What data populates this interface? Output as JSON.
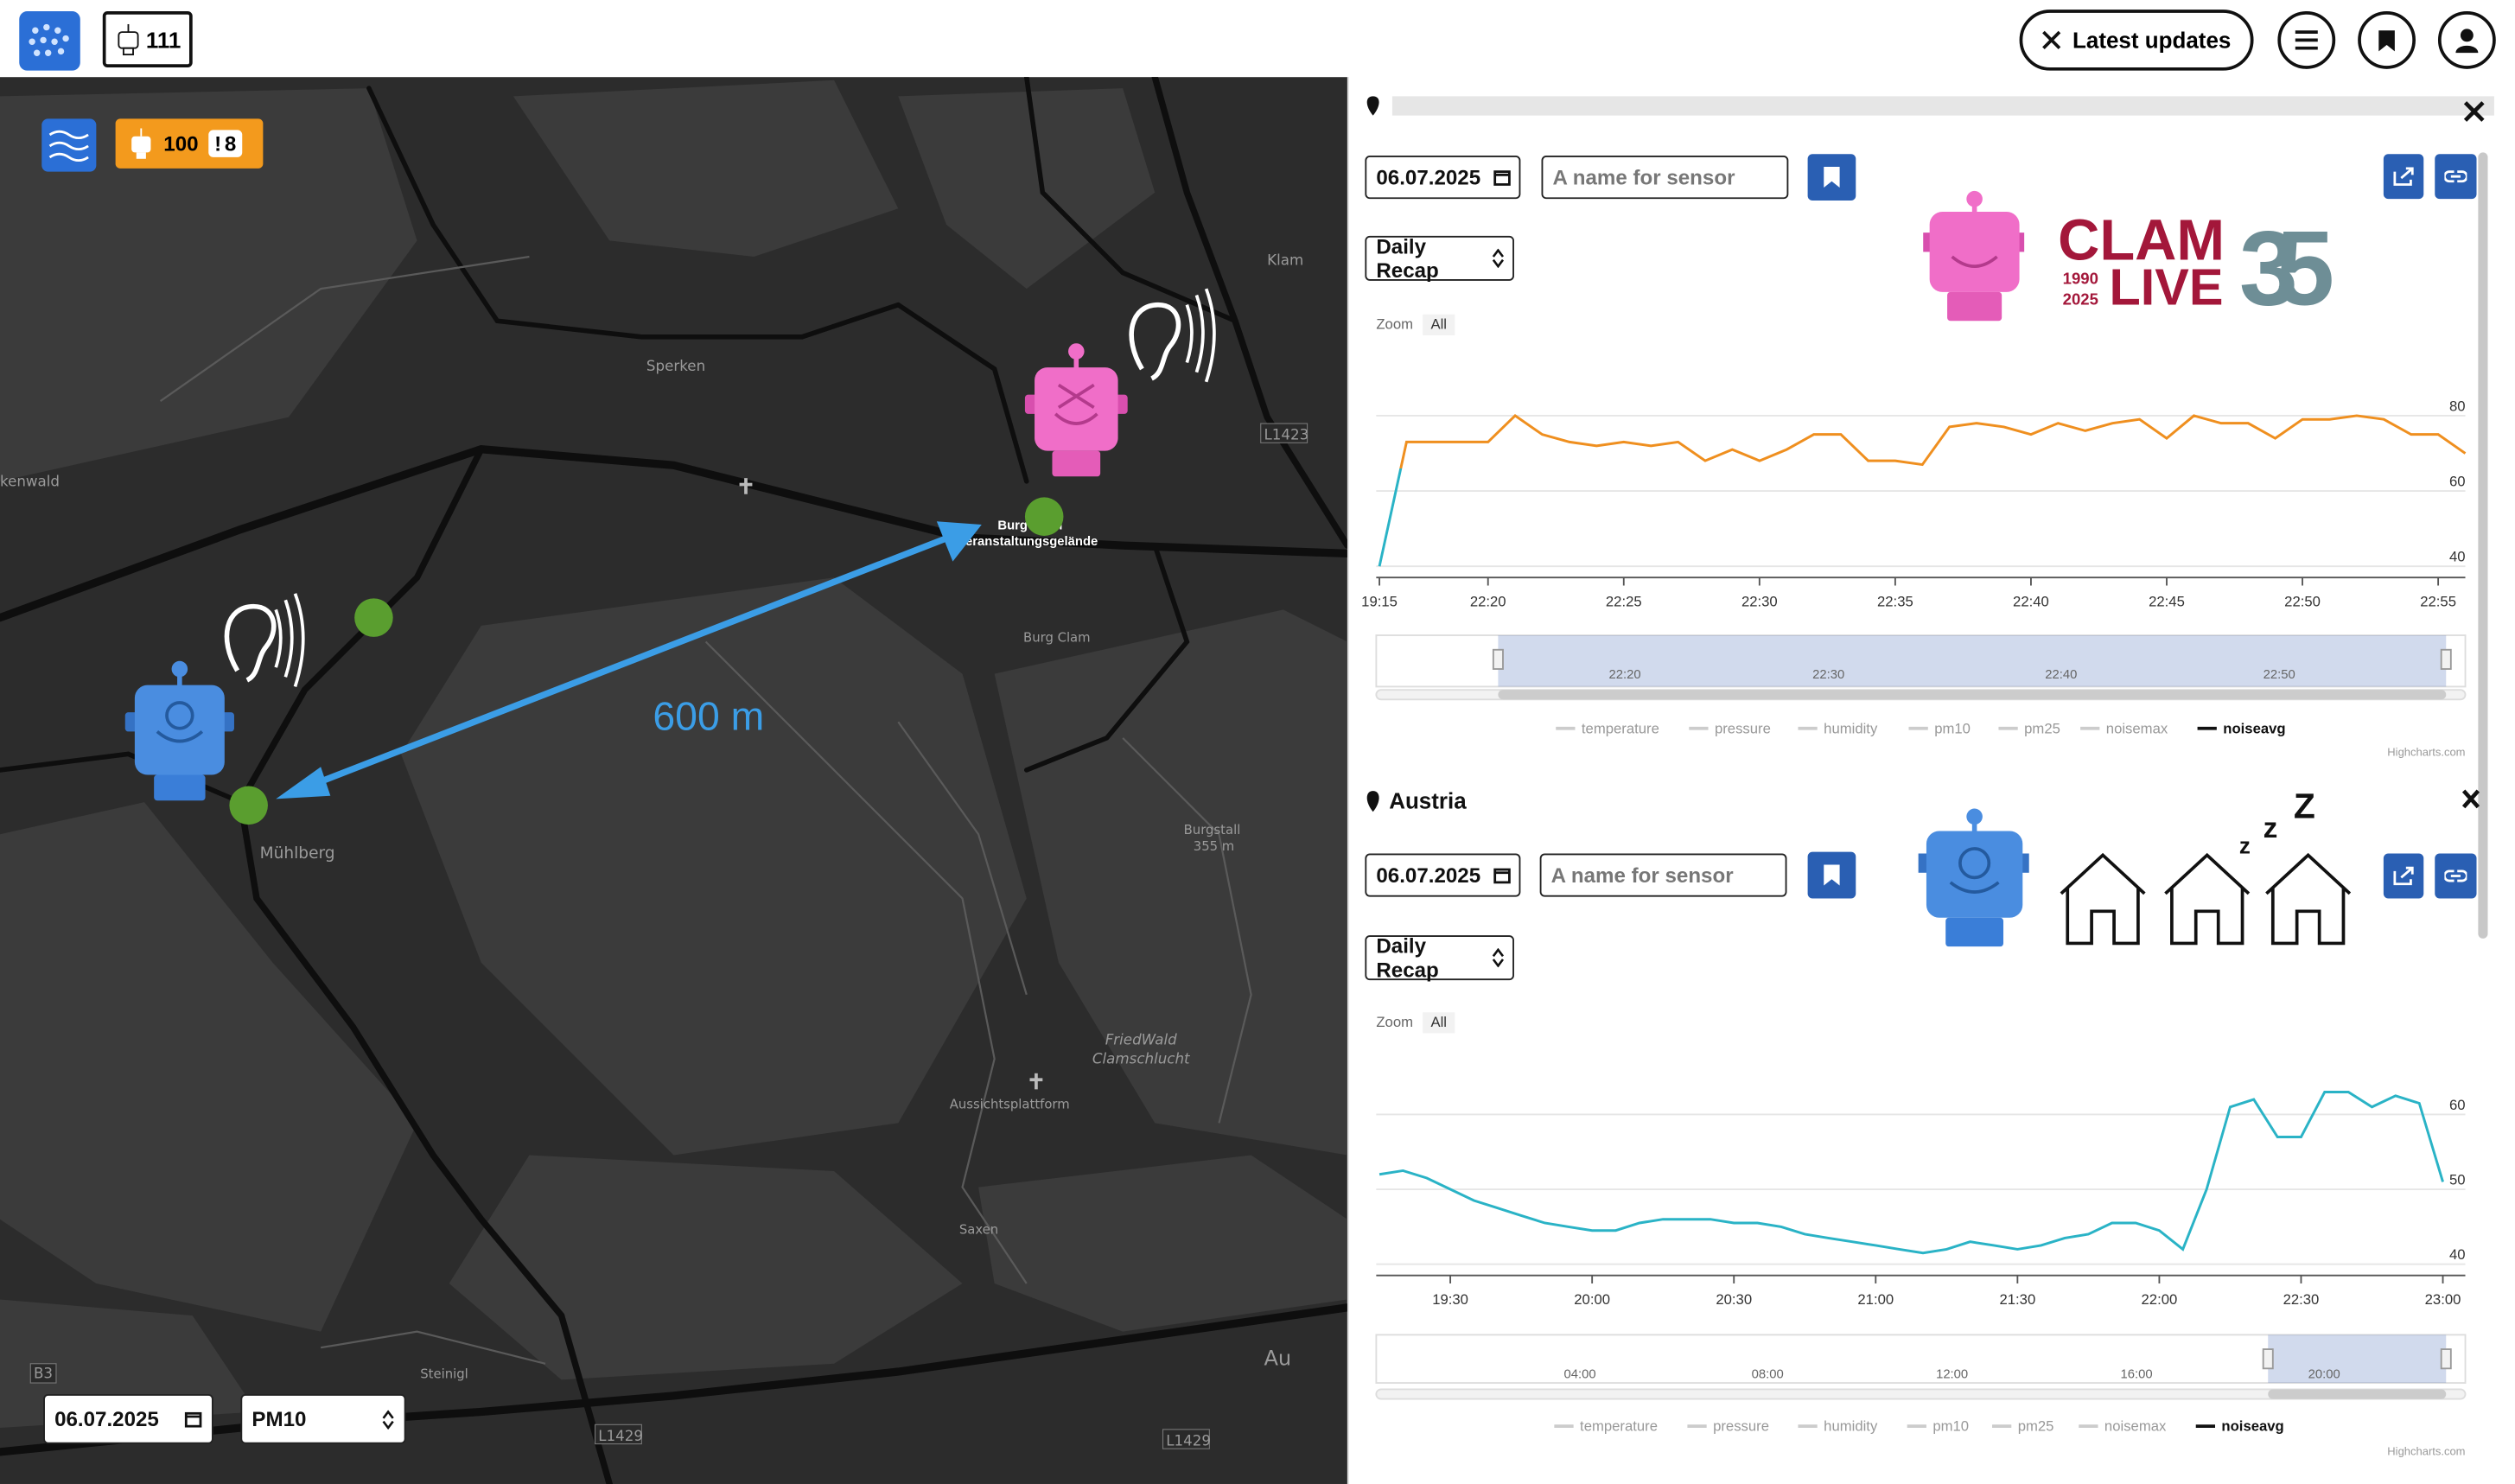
{
  "header": {
    "sensor_count": "111",
    "latest_updates": "Latest updates"
  },
  "map": {
    "badge_count": "100",
    "badge_alert_icon": "!",
    "badge_alert": "8",
    "distance": "600 m",
    "places": [
      "Klam",
      "Sperken",
      "L1423",
      "kenwald",
      "Burg Clam",
      "Veranstaltungsgelände",
      "Burg Clam",
      "Mühlberg",
      "Burgstall",
      "355 m",
      "FriedWald",
      "Clamschlucht",
      "Aussichtsplattform",
      "Saxen",
      "B3",
      "Steinigl",
      "L1429",
      "L1429",
      "Au"
    ],
    "date": "06.07.2025",
    "metric": "PM10"
  },
  "panels": [
    {
      "date": "06.07.2025",
      "name_placeholder": "A name for sensor",
      "mode": "Daily Recap",
      "logo": {
        "line1": "CLAM",
        "line2": "LIVE",
        "year_start": "1990",
        "year_end": "2025",
        "anniversary": "35"
      }
    },
    {
      "location": "Austria",
      "date": "06.07.2025",
      "name_placeholder": "A name for sensor",
      "mode": "Daily Recap",
      "sleep": [
        "z",
        "z",
        "Z"
      ]
    }
  ],
  "chart_data": [
    {
      "type": "line",
      "zoom_label": "Zoom",
      "zoom_button": "All",
      "categories": [
        "19:15",
        null,
        null,
        null,
        "22:20",
        null,
        null,
        null,
        null,
        "22:25",
        null,
        null,
        null,
        null,
        "22:30",
        null,
        null,
        null,
        null,
        "22:35",
        null,
        null,
        null,
        null,
        "22:40",
        null,
        null,
        null,
        null,
        "22:45",
        null,
        null,
        null,
        null,
        "22:50",
        null,
        null,
        null,
        null,
        "22:55",
        null
      ],
      "series": [
        {
          "name": "noiseavg",
          "color": "#ef8f1f",
          "values": [
            40,
            73,
            73,
            73,
            73,
            80,
            75,
            73,
            72,
            73,
            72,
            73,
            68,
            71,
            68,
            71,
            75,
            75,
            68,
            68,
            67,
            77,
            78,
            77,
            75,
            78,
            76,
            78,
            79,
            74,
            80,
            78,
            78,
            74,
            79,
            79,
            80,
            79,
            75,
            75,
            70
          ]
        }
      ],
      "zones": [
        {
          "value": 66,
          "color": "#2ab3c6"
        },
        {
          "color": "#ef8f1f"
        }
      ],
      "ylim": [
        37,
        86
      ],
      "yticks": [
        40,
        60,
        80
      ],
      "grid": true,
      "legend_hidden": [
        "temperature",
        "pressure",
        "humidity",
        "pm10",
        "pm25",
        "noisemax"
      ],
      "navigator_labels": [
        "22:20",
        "22:30",
        "22:40",
        "22:50"
      ],
      "credits": "Highcharts.com"
    },
    {
      "type": "line",
      "zoom_label": "Zoom",
      "zoom_button": "All",
      "categories": [
        null,
        null,
        null,
        "19:30",
        null,
        null,
        null,
        null,
        null,
        "20:00",
        null,
        null,
        null,
        null,
        null,
        "20:30",
        null,
        null,
        null,
        null,
        null,
        "21:00",
        null,
        null,
        null,
        null,
        null,
        "21:30",
        null,
        null,
        null,
        null,
        null,
        "22:00",
        null,
        null,
        null,
        null,
        null,
        "22:30",
        null,
        null,
        null,
        null,
        null,
        "23:00"
      ],
      "series": [
        {
          "name": "noiseavg",
          "color": "#2ab3c6",
          "values": [
            52,
            52.5,
            51.5,
            50,
            48.5,
            47.5,
            46.5,
            45.5,
            45,
            44.5,
            44.5,
            45.5,
            46,
            46,
            46,
            45.5,
            45.5,
            45,
            44,
            43.5,
            43,
            42.5,
            42,
            41.5,
            42,
            43,
            42.5,
            42,
            42.5,
            43.5,
            44,
            45.5,
            45.5,
            44.5,
            42,
            50,
            61,
            62,
            57,
            57,
            63,
            63,
            61,
            62.5,
            61.5,
            51
          ]
        }
      ],
      "ylim": [
        38.5,
        68.5
      ],
      "yticks": [
        40,
        50,
        60
      ],
      "grid": true,
      "legend_hidden": [
        "temperature",
        "pressure",
        "humidity",
        "pm10",
        "pm25",
        "noisemax"
      ],
      "navigator_labels": [
        "04:00",
        "08:00",
        "12:00",
        "16:00",
        "20:00"
      ],
      "credits": "Highcharts.com"
    }
  ]
}
